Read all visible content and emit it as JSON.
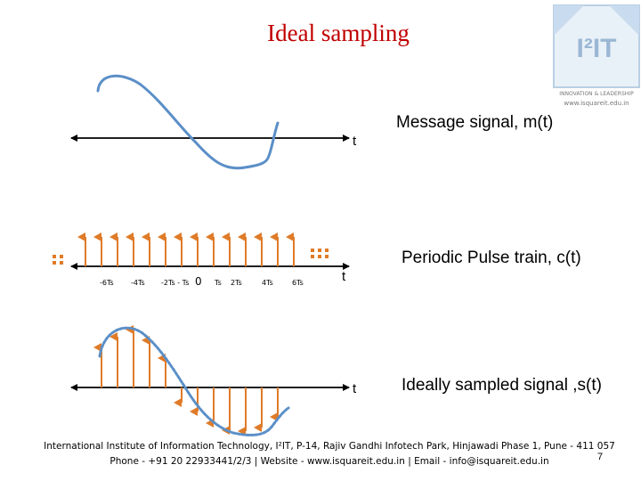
{
  "slide": {
    "title": "Ideal sampling",
    "page_number": "7"
  },
  "logo": {
    "text": "I²IT",
    "tagline": "INNOVATION & LEADERSHIP",
    "url": "www.isquareit.edu.in"
  },
  "panels": {
    "message": {
      "label": "Message signal, m(t)",
      "axis_label": "t"
    },
    "pulse": {
      "label": "Periodic Pulse train,  c(t)",
      "axis_label": "t",
      "ticks": [
        "-6Ts",
        "-4Ts",
        "-2Ts - Ts",
        "0",
        "Ts",
        "2Ts",
        "4Ts",
        "6Ts"
      ]
    },
    "sampled": {
      "label": "Ideally sampled signal ,s(t)",
      "axis_label": "t"
    }
  },
  "colors": {
    "title": "#c00000",
    "signal": "#5b8fc7",
    "pulse": "#e07b28",
    "axis": "#000000"
  },
  "footer": {
    "line1": "International Institute of Information Technology, I²IT, P-14, Rajiv Gandhi Infotech Park, Hinjawadi Phase 1, Pune - 411 057",
    "line2": "Phone - +91 20 22933441/2/3 | Website - www.isquareit.edu.in | Email - info@isquareit.edu.in"
  }
}
